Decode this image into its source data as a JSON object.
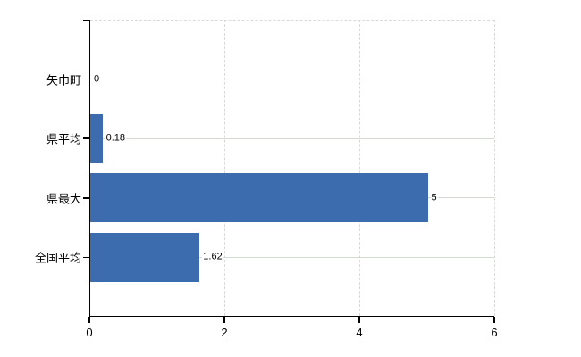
{
  "chart_data": {
    "type": "bar",
    "orientation": "horizontal",
    "title": "",
    "xlabel": "",
    "ylabel": "",
    "categories": [
      "矢巾町",
      "県平均",
      "県最大",
      "全国平均"
    ],
    "values": [
      0,
      0.18,
      5,
      1.62
    ],
    "value_labels": [
      "0",
      "0.18",
      "5",
      "1.62"
    ],
    "xlim": [
      0,
      6
    ],
    "x_ticks": [
      0,
      2,
      4,
      6
    ],
    "x_tick_labels": [
      "0",
      "2",
      "4",
      "6"
    ],
    "bar_color": "#3c6cad",
    "axis_color": "#000000",
    "grid": {
      "horizontal_on": true,
      "horizontal_color": "#d3dcd3",
      "vertical_on": true,
      "vertical_color": "#d9d9d9",
      "vertical_style": "dashed"
    },
    "legend": "none",
    "background_color": "#ffffff"
  }
}
